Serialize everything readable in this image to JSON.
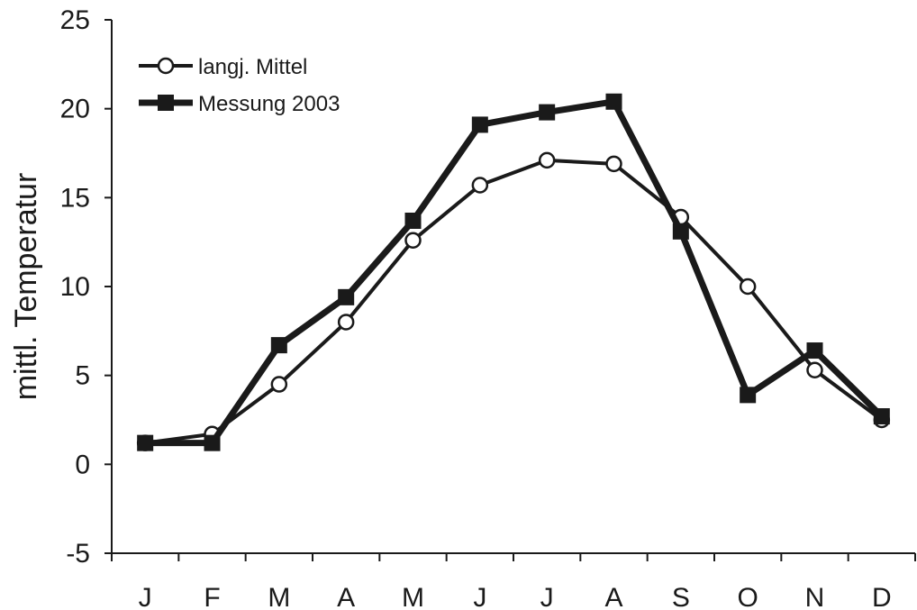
{
  "chart_data": {
    "type": "line",
    "ylabel": "mittl. Temperatur",
    "ylim": [
      -5,
      25
    ],
    "yticks": [
      "25",
      "20",
      "15",
      "10",
      "5",
      "0",
      "-5"
    ],
    "ytick_values": [
      25,
      20,
      15,
      10,
      5,
      0,
      -5
    ],
    "categories": [
      "J",
      "F",
      "M",
      "A",
      "M",
      "J",
      "J",
      "A",
      "S",
      "O",
      "N",
      "D"
    ],
    "grid": false,
    "legend_position": "top-left",
    "series": [
      {
        "name": "langj. Mittel",
        "marker": "open-circle",
        "color": "#1a1a1a",
        "values": [
          1.2,
          1.7,
          4.5,
          8.0,
          12.6,
          15.7,
          17.1,
          16.9,
          13.9,
          10.0,
          5.3,
          2.5
        ]
      },
      {
        "name": "Messung 2003",
        "marker": "filled-square",
        "color": "#1a1a1a",
        "values": [
          1.2,
          1.2,
          6.7,
          9.4,
          13.7,
          19.1,
          19.8,
          20.4,
          13.1,
          3.9,
          6.4,
          2.7
        ]
      }
    ]
  }
}
